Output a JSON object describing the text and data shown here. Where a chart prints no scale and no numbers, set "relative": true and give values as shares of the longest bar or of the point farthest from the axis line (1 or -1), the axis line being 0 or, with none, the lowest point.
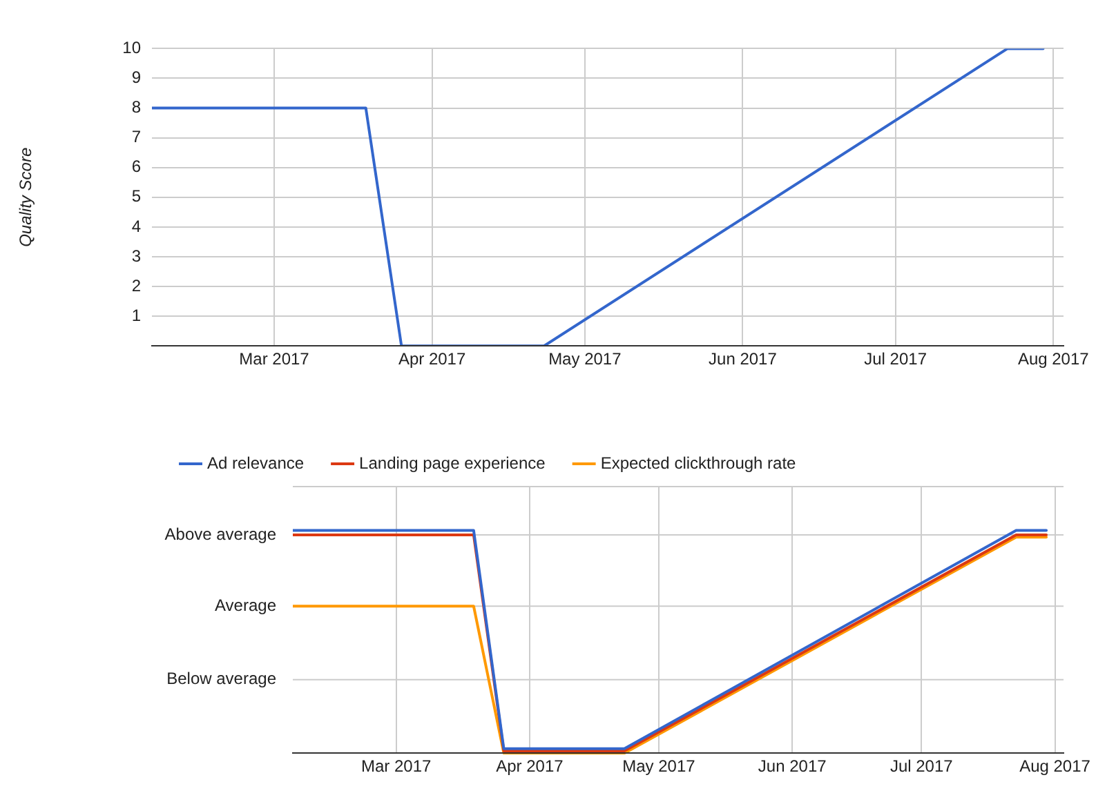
{
  "chart_data": [
    {
      "type": "line",
      "ylabel": "Quality Score",
      "x": [
        "2017-02-05",
        "2017-03-19",
        "2017-03-26",
        "2017-04-23",
        "2017-07-23",
        "2017-07-30"
      ],
      "series": [
        {
          "color": "#3366cc",
          "values": [
            8,
            8,
            0,
            0,
            10,
            10
          ]
        }
      ],
      "xlim": [
        "2017-02-05",
        "2017-08-03"
      ],
      "xticks": [
        {
          "value": "2017-03-01",
          "label": "Mar 2017"
        },
        {
          "value": "2017-04-01",
          "label": "Apr 2017"
        },
        {
          "value": "2017-05-01",
          "label": "May 2017"
        },
        {
          "value": "2017-06-01",
          "label": "Jun 2017"
        },
        {
          "value": "2017-07-01",
          "label": "Jul 2017"
        },
        {
          "value": "2017-08-01",
          "label": "Aug 2017"
        }
      ],
      "ylim": [
        0,
        10
      ],
      "yticks": [
        1,
        2,
        3,
        4,
        5,
        6,
        7,
        8,
        9,
        10
      ],
      "grid": true,
      "legend": false,
      "marker": "none",
      "line_style": "solid"
    },
    {
      "type": "line",
      "relative": true,
      "x": [
        "2017-02-05",
        "2017-03-19",
        "2017-03-26",
        "2017-04-23",
        "2017-07-23",
        "2017-07-30"
      ],
      "series": [
        {
          "name": "Ad relevance",
          "color": "#3366cc",
          "values": [
            1,
            1,
            0.02,
            0.02,
            1,
            1
          ]
        },
        {
          "name": "Landing page experience",
          "color": "#dc3912",
          "values": [
            0.98,
            0.98,
            0.01,
            0.01,
            0.98,
            0.98
          ]
        },
        {
          "name": "Expected clickthrough rate",
          "color": "#ff9900",
          "values": [
            0.66,
            0.66,
            0,
            0,
            0.97,
            0.97
          ]
        }
      ],
      "xlim": [
        "2017-02-05",
        "2017-08-03"
      ],
      "xticks": [
        {
          "value": "2017-03-01",
          "label": "Mar 2017"
        },
        {
          "value": "2017-04-01",
          "label": "Apr 2017"
        },
        {
          "value": "2017-05-01",
          "label": "May 2017"
        },
        {
          "value": "2017-06-01",
          "label": "Jun 2017"
        },
        {
          "value": "2017-07-01",
          "label": "Jul 2017"
        },
        {
          "value": "2017-08-01",
          "label": "Aug 2017"
        }
      ],
      "ref_lines": [
        {
          "axis": "y",
          "value": 0.33,
          "label": "Below average",
          "color": "#cccccc"
        },
        {
          "axis": "y",
          "value": 0.66,
          "label": "Average",
          "color": "#cccccc"
        },
        {
          "axis": "y",
          "value": 0.98,
          "label": "Above average",
          "color": "#cccccc"
        }
      ],
      "grid": "x",
      "legend": "top",
      "marker": "none",
      "line_style": "solid"
    }
  ]
}
